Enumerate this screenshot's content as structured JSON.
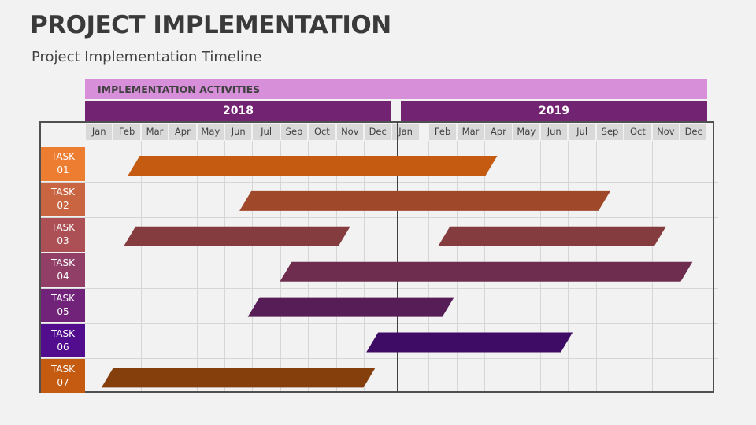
{
  "title": "PROJECT IMPLEMENTATION",
  "subtitle": "Project Implementation Timeline",
  "header_label": "IMPLEMENTATION ACTIVITIES",
  "colors": {
    "background": "#F2F2F2",
    "header_band": "#D78FDA",
    "year_band": "#722473",
    "month_cell": "#D9D9D9"
  },
  "chart_data": {
    "type": "gantt",
    "years": [
      {
        "label": "2018",
        "months": [
          "Jan",
          "Feb",
          "Mar",
          "Apr",
          "May",
          "Jun",
          "Jul",
          "Sep",
          "Oct",
          "Nov",
          "Dec"
        ]
      },
      {
        "label": "2019",
        "months": [
          "Jan",
          "Feb",
          "Mar",
          "Apr",
          "May",
          "Jun",
          "Jul",
          "Sep",
          "Oct",
          "Nov",
          "Dec"
        ]
      }
    ],
    "tasks": [
      {
        "label": "TASK",
        "num": "01",
        "label_color": "#ED7D31",
        "bar_color": "#C55A11",
        "segments": [
          [
            1.75,
            14.25
          ]
        ]
      },
      {
        "label": "TASK",
        "num": "02",
        "label_color": "#C96541",
        "bar_color": "#A0492A",
        "segments": [
          [
            5.75,
            18.3
          ]
        ]
      },
      {
        "label": "TASK",
        "num": "03",
        "label_color": "#AD5055",
        "bar_color": "#843C3F",
        "segments": [
          [
            1.6,
            9.3
          ],
          [
            12.55,
            20.3
          ]
        ]
      },
      {
        "label": "TASK",
        "num": "04",
        "label_color": "#913F67",
        "bar_color": "#6E2D4E",
        "segments": [
          [
            7.2,
            21.25
          ]
        ]
      },
      {
        "label": "TASK",
        "num": "05",
        "label_color": "#71237A",
        "bar_color": "#561D57",
        "segments": [
          [
            6.05,
            12.7
          ]
        ]
      },
      {
        "label": "TASK",
        "num": "06",
        "label_color": "#520C8E",
        "bar_color": "#3E0C64",
        "segments": [
          [
            10.3,
            16.95
          ]
        ]
      },
      {
        "label": "TASK",
        "num": "07",
        "label_color": "#C55A11",
        "bar_color": "#843F0C",
        "segments": [
          [
            0.8,
            10.2
          ]
        ]
      }
    ]
  }
}
